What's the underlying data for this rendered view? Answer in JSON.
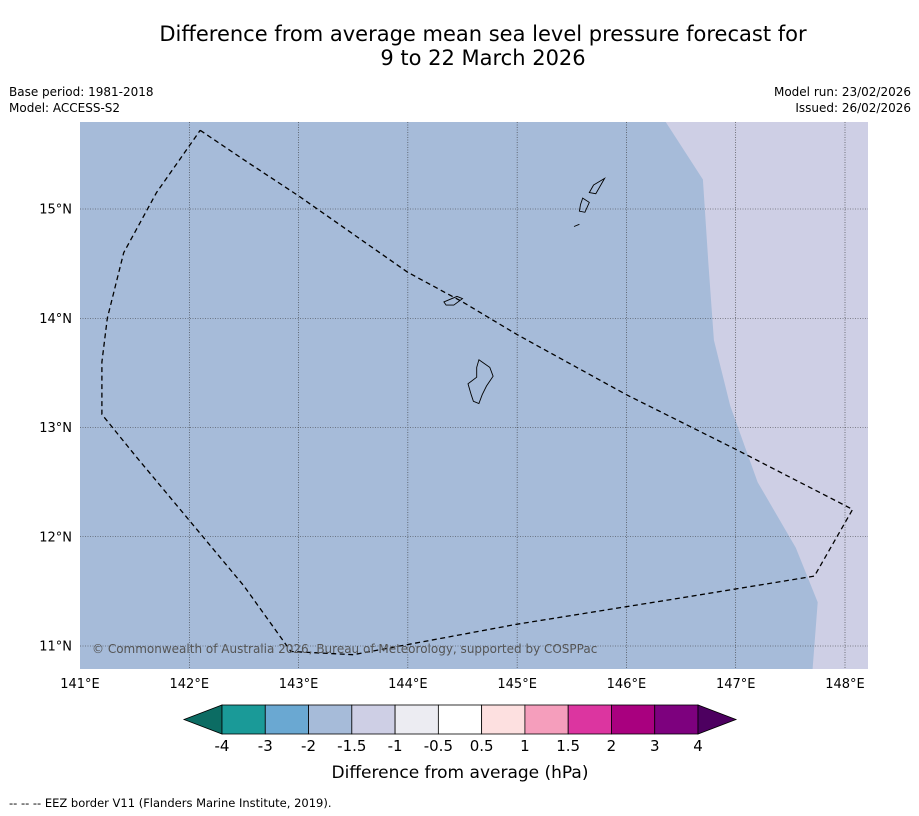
{
  "title": {
    "line1": "Difference from average mean sea level pressure forecast for",
    "line2": "9 to 22 March 2026"
  },
  "meta_left": {
    "base_period": "Base period: 1981-2018",
    "model": "Model: ACCESS-S2"
  },
  "meta_right": {
    "model_run": "Model run: 23/02/2026",
    "issued": "Issued: 26/02/2026"
  },
  "map": {
    "lon_range": [
      141.0,
      148.2
    ],
    "lat_range": [
      10.8,
      15.8
    ],
    "lon_labels": [
      "141°E",
      "142°E",
      "143°E",
      "144°E",
      "145°E",
      "146°E",
      "147°E",
      "148°E"
    ],
    "lat_labels": [
      "11°N",
      "12°N",
      "13°N",
      "14°N",
      "15°N"
    ],
    "copyright": "© Commonwealth of Australia 2026, Bureau of Meteorology, supported by COSPPac",
    "ocean_color": "#a6bbd9",
    "anomaly_zone_color": "#cecfe5",
    "anomaly_boundary": [
      [
        146.33,
        15.8
      ],
      [
        146.7,
        15.27
      ],
      [
        146.75,
        14.5
      ],
      [
        146.8,
        13.8
      ],
      [
        146.95,
        13.2
      ],
      [
        147.2,
        12.5
      ],
      [
        147.55,
        11.9
      ],
      [
        147.75,
        11.4
      ],
      [
        147.7,
        10.8
      ]
    ],
    "eez_border": [
      [
        142.1,
        15.72
      ],
      [
        142.5,
        15.45
      ],
      [
        143.0,
        15.12
      ],
      [
        143.6,
        14.7
      ],
      [
        144.0,
        14.42
      ],
      [
        144.5,
        14.15
      ],
      [
        145.0,
        13.85
      ],
      [
        146.0,
        13.3
      ],
      [
        147.0,
        12.8
      ],
      [
        148.07,
        12.25
      ],
      [
        147.72,
        11.64
      ],
      [
        146.5,
        11.44
      ],
      [
        145.0,
        11.2
      ],
      [
        143.5,
        10.92
      ],
      [
        142.93,
        10.95
      ],
      [
        142.5,
        11.55
      ],
      [
        142.0,
        12.15
      ],
      [
        141.5,
        12.75
      ],
      [
        141.2,
        13.12
      ],
      [
        141.2,
        13.6
      ],
      [
        141.25,
        14.0
      ],
      [
        141.4,
        14.6
      ],
      [
        141.7,
        15.15
      ],
      [
        142.1,
        15.72
      ]
    ],
    "islands": [
      [
        [
          144.65,
          13.62
        ],
        [
          144.75,
          13.55
        ],
        [
          144.78,
          13.47
        ],
        [
          144.72,
          13.38
        ],
        [
          144.68,
          13.3
        ],
        [
          144.65,
          13.22
        ],
        [
          144.6,
          13.24
        ],
        [
          144.58,
          13.3
        ],
        [
          144.55,
          13.4
        ],
        [
          144.63,
          13.46
        ],
        [
          144.63,
          13.55
        ]
      ],
      [
        [
          144.33,
          14.15
        ],
        [
          144.45,
          14.2
        ],
        [
          144.5,
          14.18
        ],
        [
          144.42,
          14.12
        ],
        [
          144.35,
          14.12
        ]
      ],
      [
        [
          145.7,
          15.22
        ],
        [
          145.8,
          15.28
        ],
        [
          145.72,
          15.14
        ],
        [
          145.66,
          15.15
        ]
      ],
      [
        [
          145.6,
          15.1
        ],
        [
          145.66,
          15.06
        ],
        [
          145.62,
          14.97
        ],
        [
          145.57,
          14.98
        ],
        [
          145.58,
          15.04
        ]
      ],
      [
        [
          145.52,
          14.84
        ],
        [
          145.57,
          14.86
        ]
      ]
    ]
  },
  "colorbar": {
    "label": "Difference from average (hPa)",
    "ticks": [
      "-4",
      "-3",
      "-2",
      "-1.5",
      "-1",
      "-0.5",
      "0.5",
      "1",
      "1.5",
      "2",
      "3",
      "4"
    ],
    "colors": [
      "#1a9a98",
      "#6aa8d2",
      "#a6bbd9",
      "#cecfe5",
      "#ececf2",
      "#ffffff",
      "#fde0e0",
      "#f59ebc",
      "#dc35a0",
      "#a9007f",
      "#7d017e"
    ],
    "extend_low_color": "#0c6c63",
    "extend_high_color": "#4d0060"
  },
  "footnote": "--  --  -- EEZ border V11 (Flanders Marine Institute, 2019)."
}
